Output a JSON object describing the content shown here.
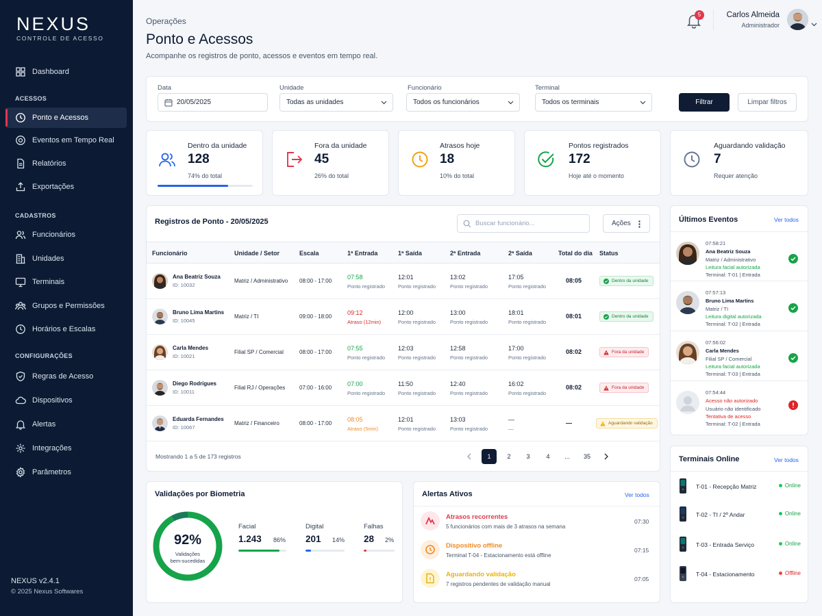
{
  "brand": {
    "name": "NEXUS",
    "tagline": "CONTROLE DE ACESSO"
  },
  "sidebar": {
    "items": [
      {
        "label": "Dashboard",
        "icon": "grid-icon"
      },
      {
        "label": "Ponto e Acessos",
        "icon": "clock-icon",
        "active": true
      },
      {
        "label": "Eventos em Tempo Real",
        "icon": "target-icon"
      },
      {
        "label": "Relatórios",
        "icon": "document-icon"
      },
      {
        "label": "Exportações",
        "icon": "export-icon"
      },
      {
        "label": "Funcionários",
        "icon": "users-icon"
      },
      {
        "label": "Unidades",
        "icon": "building-icon"
      },
      {
        "label": "Terminais",
        "icon": "monitor-icon"
      },
      {
        "label": "Grupos e Permissões",
        "icon": "group-icon"
      },
      {
        "label": "Horários e Escalas",
        "icon": "schedule-icon"
      },
      {
        "label": "Regras de Acesso",
        "icon": "shield-icon"
      },
      {
        "label": "Dispositivos",
        "icon": "cloud-icon"
      },
      {
        "label": "Alertas",
        "icon": "bell-icon"
      },
      {
        "label": "Integrações",
        "icon": "integration-icon"
      },
      {
        "label": "Parâmetros",
        "icon": "gear-icon"
      }
    ],
    "sections": [
      "ACESSOS",
      "CADASTROS",
      "CONFIGURAÇÕES"
    ],
    "version": "NEXUS v2.4.1",
    "copyright": "© 2025 Nexus Softwares"
  },
  "header": {
    "breadcrumb": "Operações",
    "title": "Ponto e Acessos",
    "subtitle": "Acompanhe os registros de ponto, acessos e eventos em tempo real.",
    "notifications": "5",
    "user_name": "Carlos Almeida",
    "user_role": "Administrador"
  },
  "filters": {
    "date_label": "Data",
    "date_value": "20/05/2025",
    "unit_label": "Unidade",
    "unit_value": "Todas as unidades",
    "employee_label": "Funcionário",
    "employee_value": "Todos os funcionários",
    "terminal_label": "Terminal",
    "terminal_value": "Todos os terminais",
    "filter_button": "Filtrar",
    "clear_button": "Limpar filtros"
  },
  "stats": [
    {
      "title": "Dentro da unidade",
      "value": "128",
      "sub": "74% do total",
      "progress": 0.74,
      "color": "#2563eb"
    },
    {
      "title": "Fora da unidade",
      "value": "45",
      "sub": "26% do total",
      "color": "#e2384a"
    },
    {
      "title": "Atrasos hoje",
      "value": "18",
      "sub": "10% do total",
      "color": "#f59e0b"
    },
    {
      "title": "Pontos registrados",
      "value": "172",
      "sub": "Hoje até o momento",
      "color": "#16a34a"
    },
    {
      "title": "Aguardando validação",
      "value": "7",
      "sub": "Requer atenção",
      "color": "#64748b"
    }
  ],
  "table": {
    "title": "Registros de Ponto - 20/05/2025",
    "search_placeholder": "Buscar funcionário...",
    "actions": "Ações",
    "headers": [
      "Funcionário",
      "Unidade / Setor",
      "Escala",
      "1ª Entrada",
      "1ª Saída",
      "2ª Entrada",
      "2ª Saída",
      "Total do dia",
      "Status"
    ],
    "rows": [
      {
        "name": "Ana Beatriz Souza",
        "id": "ID: 10032",
        "unit": "Matriz / Administrativo",
        "shift": "08:00 - 17:00",
        "e1": "07:58",
        "e1_sub": "Ponto registrado",
        "s1": "12:01",
        "s1_sub": "Ponto registrado",
        "e2": "13:02",
        "e2_sub": "Ponto registrado",
        "s2": "17:05",
        "s2_sub": "Ponto registrado",
        "total": "08:05",
        "status": "Dentro da unidade"
      },
      {
        "name": "Bruno Lima Martins",
        "id": "ID: 10045",
        "unit": "Matriz / TI",
        "shift": "09:00 - 18:00",
        "e1": "09:12",
        "e1_sub": "Atraso (12min)",
        "s1": "12:00",
        "s1_sub": "Ponto registrado",
        "e2": "13:00",
        "e2_sub": "Ponto registrado",
        "s2": "18:01",
        "s2_sub": "Ponto registrado",
        "total": "08:01",
        "status": "Dentro da unidade"
      },
      {
        "name": "Carla Mendes",
        "id": "ID: 10021",
        "unit": "Filial SP / Comercial",
        "shift": "08:00 - 17:00",
        "e1": "07:55",
        "e1_sub": "Ponto registrado",
        "s1": "12:03",
        "s1_sub": "Ponto registrado",
        "e2": "12:58",
        "e2_sub": "Ponto registrado",
        "s2": "17:00",
        "s2_sub": "Ponto registrado",
        "total": "08:02",
        "status": "Fora da unidade"
      },
      {
        "name": "Diego Rodrigues",
        "id": "ID: 10011",
        "unit": "Filial RJ / Operações",
        "shift": "07:00 - 16:00",
        "e1": "07:00",
        "e1_sub": "Ponto registrado",
        "s1": "11:50",
        "s1_sub": "Ponto registrado",
        "e2": "12:40",
        "e2_sub": "Ponto registrado",
        "s2": "16:02",
        "s2_sub": "Ponto registrado",
        "total": "08:02",
        "status": "Fora da unidade"
      },
      {
        "name": "Eduarda Fernandes",
        "id": "ID: 10067",
        "unit": "Matriz / Financeiro",
        "shift": "08:00 - 17:00",
        "e1": "08:05",
        "e1_sub": "Atraso (5min)",
        "s1": "12:01",
        "s1_sub": "Ponto registrado",
        "e2": "13:03",
        "e2_sub": "Ponto registrado",
        "s2": "—",
        "s2_sub": "—",
        "total": "—",
        "status": "Aguardando validação"
      }
    ],
    "pagination_info": "Mostrando 1 a 5 de 173 registros",
    "pages": [
      "1",
      "2",
      "3",
      "4",
      "...",
      "35"
    ]
  },
  "events": {
    "title": "Últimos Eventos",
    "link": "Ver todos",
    "items": [
      {
        "time": "07:58:21",
        "name": "Ana Beatriz Souza",
        "unit": "Matriz / Administrativo",
        "detail": "Leitura facial autorizada",
        "terminal": "Terminal: T-01  |  Entrada",
        "ok": true
      },
      {
        "time": "07:57:13",
        "name": "Bruno Lima Martins",
        "unit": "Matriz / TI",
        "detail": "Leitura digital autorizada",
        "terminal": "Terminal: T-02  |  Entrada",
        "ok": true
      },
      {
        "time": "07:56:02",
        "name": "Carla Mendes",
        "unit": "Filial SP / Comercial",
        "detail": "Leitura facial autorizada",
        "terminal": "Terminal: T-03  |  Entrada",
        "ok": true
      },
      {
        "time": "07:54:44",
        "name": "Acesso não autorizado",
        "unit": "Usuário não identificado",
        "detail": "Tentativa de acesso",
        "terminal": "Terminal: T-02  |  Entrada",
        "ok": false
      }
    ]
  },
  "terminals": {
    "title": "Terminais Online",
    "link": "Ver todos",
    "items": [
      {
        "name": "T-01 - Recepção Matriz",
        "status": "Online"
      },
      {
        "name": "T-02 - TI / 2º Andar",
        "status": "Online"
      },
      {
        "name": "T-03 - Entrada Serviço",
        "status": "Online"
      },
      {
        "name": "T-04 - Estacionamento",
        "status": "Offline"
      }
    ]
  },
  "biometrics": {
    "title": "Validações por Biometria",
    "percent": "92%",
    "percent_value": 0.92,
    "caption_line1": "Validações",
    "caption_line2": "bem-sucedidas",
    "items": [
      {
        "label": "Facial",
        "value": "1.243",
        "pct": "86%",
        "fraction": 0.86,
        "color": "#16a34a"
      },
      {
        "label": "Digital",
        "value": "201",
        "pct": "14%",
        "fraction": 0.14,
        "color": "#2563eb"
      },
      {
        "label": "Falhas",
        "value": "28",
        "pct": "2%",
        "fraction": 0.02,
        "color": "#e2384a"
      }
    ]
  },
  "alerts": {
    "title": "Alertas Ativos",
    "link": "Ver todos",
    "items": [
      {
        "title": "Atrasos recorrentes",
        "desc": "5 funcionários com mais de 3 atrasos na semana",
        "time": "07:30",
        "color": "#e2384a"
      },
      {
        "title": "Dispositivo offline",
        "desc": "Terminal T-04 - Estacionamento está offline",
        "time": "07:15",
        "color": "#f08a24"
      },
      {
        "title": "Aguardando validação",
        "desc": "7 registros pendentes de validação manual",
        "time": "07:05",
        "color": "#eab308"
      }
    ]
  }
}
